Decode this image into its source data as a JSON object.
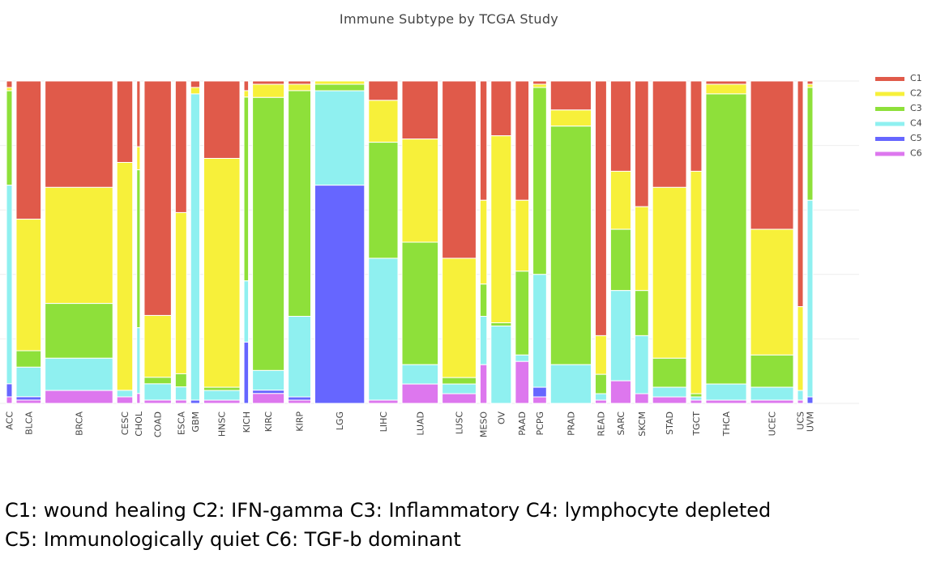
{
  "chart_data": {
    "type": "bar",
    "title": "Immune Subtype by TCGA Study",
    "stacking": "normalized-100%",
    "legend_position": "top-right",
    "grid": true,
    "ylim": [
      0,
      1
    ],
    "series": [
      {
        "name": "C1",
        "color": "#e05a4a"
      },
      {
        "name": "C2",
        "color": "#f7f03a"
      },
      {
        "name": "C3",
        "color": "#8ee03a"
      },
      {
        "name": "C4",
        "color": "#8ff0f0"
      },
      {
        "name": "C5",
        "color": "#6666ff"
      },
      {
        "name": "C6",
        "color": "#dd77ee"
      }
    ],
    "categories": [
      {
        "label": "ACC",
        "n": 2.5,
        "values": [
          0.02,
          0.01,
          0.29,
          0.61,
          0.04,
          0.02
        ]
      },
      {
        "label": "BLCA",
        "n": 11,
        "values": [
          0.42,
          0.4,
          0.05,
          0.09,
          0.01,
          0.01
        ]
      },
      {
        "label": "BRCA",
        "n": 30,
        "values": [
          0.33,
          0.36,
          0.17,
          0.1,
          0.0,
          0.04
        ]
      },
      {
        "label": "CESC",
        "n": 7,
        "values": [
          0.25,
          0.7,
          0.0,
          0.02,
          0.0,
          0.02
        ]
      },
      {
        "label": "CHOL",
        "n": 1.5,
        "values": [
          0.2,
          0.07,
          0.48,
          0.2,
          0.0,
          0.03
        ]
      },
      {
        "label": "COAD",
        "n": 12,
        "values": [
          0.72,
          0.19,
          0.02,
          0.05,
          0.0,
          0.01
        ]
      },
      {
        "label": "ESCA",
        "n": 5,
        "values": [
          0.4,
          0.49,
          0.04,
          0.04,
          0.0,
          0.01
        ]
      },
      {
        "label": "GBM",
        "n": 4,
        "values": [
          0.02,
          0.02,
          0.0,
          0.95,
          0.01,
          0.0
        ]
      },
      {
        "label": "HNSC",
        "n": 16,
        "values": [
          0.24,
          0.71,
          0.01,
          0.03,
          0.0,
          0.01
        ]
      },
      {
        "label": "KICH",
        "n": 2,
        "values": [
          0.03,
          0.02,
          0.57,
          0.19,
          0.19,
          0.0
        ]
      },
      {
        "label": "KIRC",
        "n": 14,
        "values": [
          0.01,
          0.04,
          0.83,
          0.06,
          0.01,
          0.03
        ]
      },
      {
        "label": "KIRP",
        "n": 10,
        "values": [
          0.01,
          0.02,
          0.7,
          0.25,
          0.01,
          0.01
        ]
      },
      {
        "label": "LGG",
        "n": 22,
        "values": [
          0.0,
          0.01,
          0.02,
          0.29,
          0.67,
          0.0
        ]
      },
      {
        "label": "LIHC",
        "n": 13,
        "values": [
          0.06,
          0.13,
          0.36,
          0.44,
          0.0,
          0.01
        ]
      },
      {
        "label": "LUAD",
        "n": 16,
        "values": [
          0.18,
          0.32,
          0.38,
          0.06,
          0.0,
          0.06
        ]
      },
      {
        "label": "LUSC",
        "n": 15,
        "values": [
          0.55,
          0.37,
          0.02,
          0.03,
          0.0,
          0.03
        ]
      },
      {
        "label": "MESO",
        "n": 3,
        "values": [
          0.37,
          0.26,
          0.1,
          0.15,
          0.0,
          0.12
        ]
      },
      {
        "label": "OV",
        "n": 9,
        "values": [
          0.17,
          0.58,
          0.01,
          0.24,
          0.0,
          0.0
        ]
      },
      {
        "label": "PAAD",
        "n": 6,
        "values": [
          0.37,
          0.22,
          0.26,
          0.02,
          0.0,
          0.13
        ]
      },
      {
        "label": "PCPG",
        "n": 6,
        "values": [
          0.01,
          0.01,
          0.58,
          0.35,
          0.03,
          0.02
        ]
      },
      {
        "label": "PRAD",
        "n": 18,
        "values": [
          0.09,
          0.05,
          0.74,
          0.12,
          0.0,
          0.0
        ]
      },
      {
        "label": "READ",
        "n": 5,
        "values": [
          0.79,
          0.12,
          0.06,
          0.02,
          0.0,
          0.01
        ]
      },
      {
        "label": "SARC",
        "n": 9,
        "values": [
          0.28,
          0.18,
          0.19,
          0.28,
          0.0,
          0.07
        ]
      },
      {
        "label": "SKCM",
        "n": 6,
        "values": [
          0.39,
          0.26,
          0.14,
          0.18,
          0.0,
          0.03
        ]
      },
      {
        "label": "STAD",
        "n": 15,
        "values": [
          0.33,
          0.53,
          0.09,
          0.03,
          0.0,
          0.02
        ]
      },
      {
        "label": "TGCT",
        "n": 5,
        "values": [
          0.28,
          0.69,
          0.01,
          0.01,
          0.0,
          0.01
        ]
      },
      {
        "label": "THCA",
        "n": 18,
        "values": [
          0.01,
          0.03,
          0.9,
          0.05,
          0.0,
          0.01
        ]
      },
      {
        "label": "UCEC",
        "n": 19,
        "values": [
          0.46,
          0.39,
          0.1,
          0.04,
          0.0,
          0.01
        ]
      },
      {
        "label": "UCS",
        "n": 2.5,
        "values": [
          0.7,
          0.26,
          0.0,
          0.03,
          0.0,
          0.01
        ]
      },
      {
        "label": "UVM",
        "n": 2.5,
        "values": [
          0.01,
          0.01,
          0.35,
          0.61,
          0.02,
          0.0
        ]
      }
    ]
  },
  "caption": {
    "line1": "C1: wound healing C2: IFN-gamma C3: Inflammatory  C4: lymphocyte depleted",
    "line2": "C5: Immunologically quiet  C6: TGF-b dominant"
  }
}
